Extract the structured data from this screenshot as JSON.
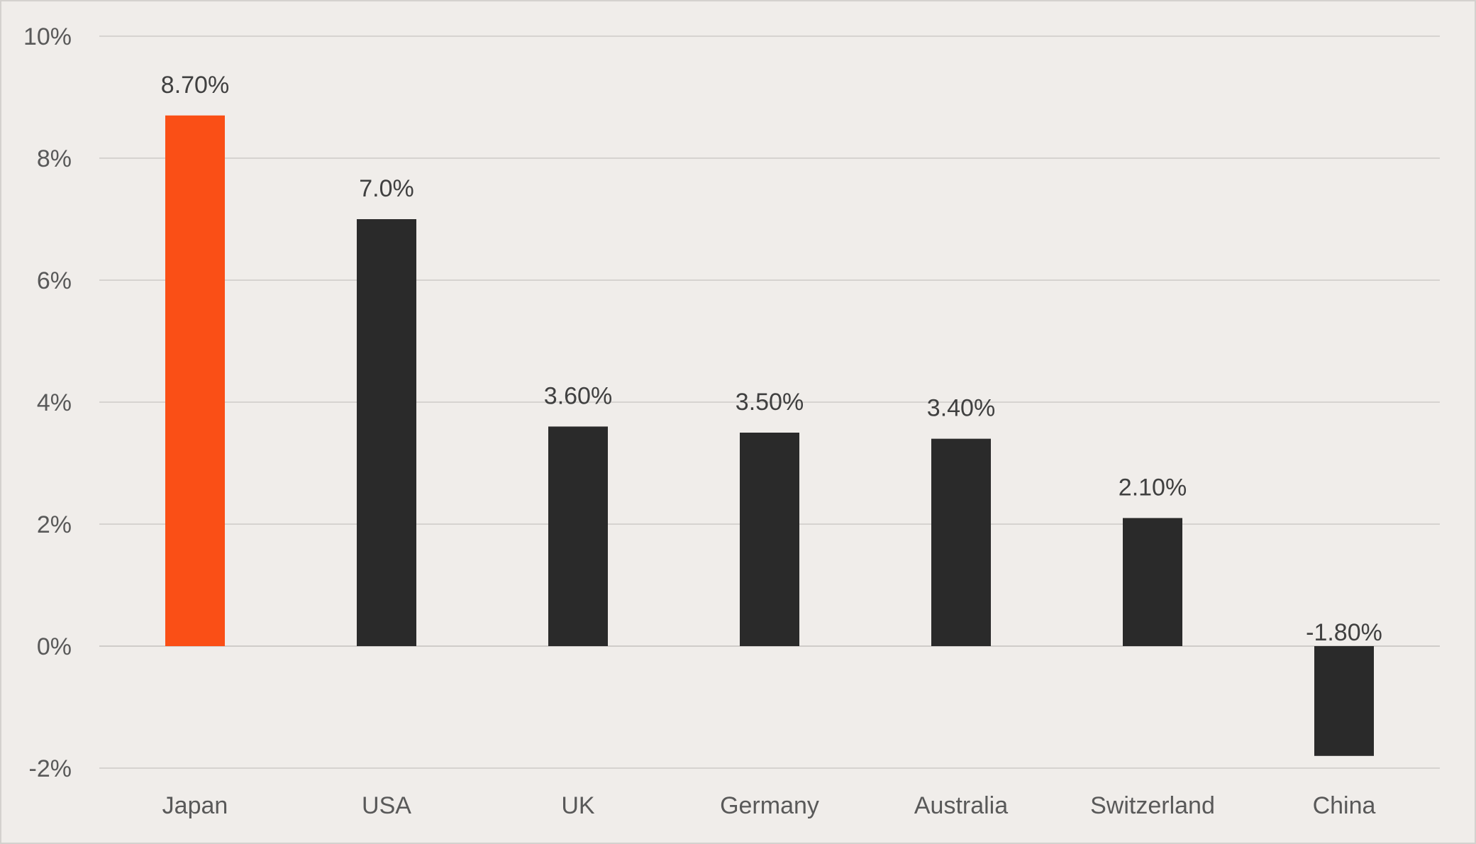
{
  "chart_data": {
    "type": "bar",
    "title": "",
    "xlabel": "",
    "ylabel": "",
    "categories": [
      "Japan",
      "USA",
      "UK",
      "Germany",
      "Australia",
      "Switzerland",
      "China"
    ],
    "values": [
      8.7,
      7.0,
      3.6,
      3.5,
      3.4,
      2.1,
      -1.8
    ],
    "data_labels": [
      "8.70%",
      "7.0%",
      "3.60%",
      "3.50%",
      "3.40%",
      "2.10%",
      "-1.80%"
    ],
    "ylim": [
      -2,
      10
    ],
    "yticks": [
      -2,
      0,
      2,
      4,
      6,
      8,
      10
    ],
    "ytick_labels": [
      "-2%",
      "0%",
      "2%",
      "4%",
      "6%",
      "8%",
      "10%"
    ],
    "grid": true,
    "legend": "none",
    "colors": {
      "highlight": "#fa4f16",
      "default": "#2a2a2a",
      "background": "#f0edea"
    },
    "highlight_index": 0
  }
}
